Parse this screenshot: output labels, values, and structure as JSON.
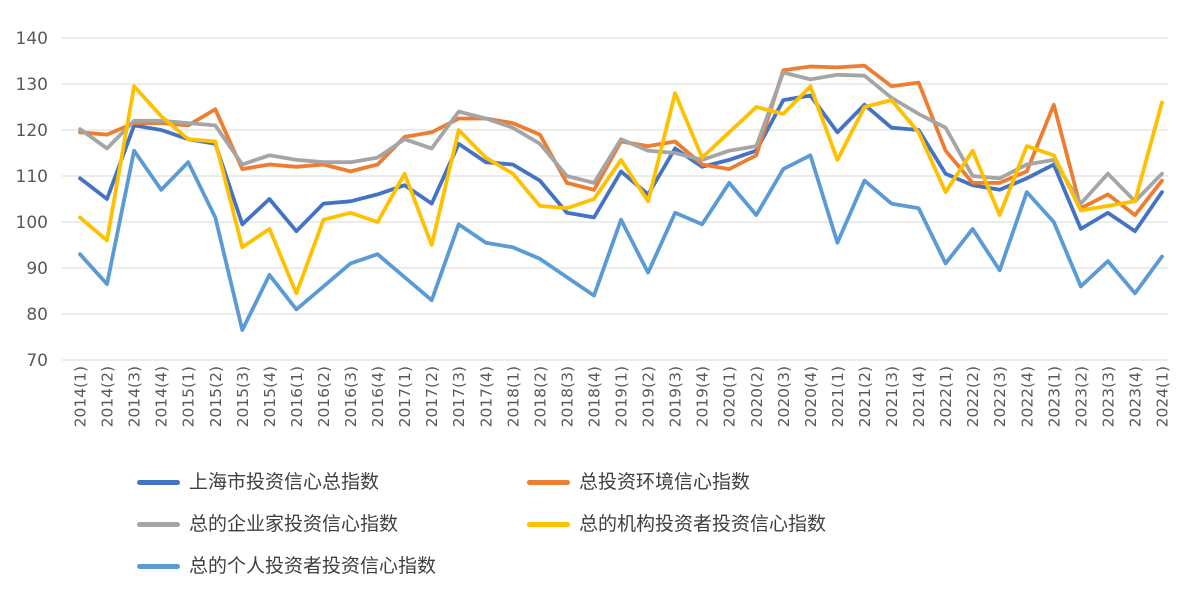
{
  "chart_data": {
    "type": "line",
    "title": "",
    "xlabel": "",
    "ylabel": "",
    "y_axis": {
      "min": 70,
      "max": 140,
      "step": 10,
      "tick_labels": [
        "70",
        "80",
        "90",
        "100",
        "110",
        "120",
        "130",
        "140"
      ]
    },
    "grid": true,
    "legend_position": "bottom",
    "gridline_color": "#d9d9d9",
    "axis_text_color": "#595959",
    "x_labels": [
      "2014(1)",
      "2014(2)",
      "2014(3)",
      "2014(4)",
      "2015(1)",
      "2015(2)",
      "2015(3)",
      "2015(4)",
      "2016(1)",
      "2016(2)",
      "2016(3)",
      "2016(4)",
      "2017(1)",
      "2017(2)",
      "2017(3)",
      "2017(4)",
      "2018(1)",
      "2018(2)",
      "2018(3)",
      "2018(4)",
      "2019(1)",
      "2019(2)",
      "2019(3)",
      "2019(4)",
      "2020(1)",
      "2020(2)",
      "2020(3)",
      "2020(4)",
      "2021(1)",
      "2021(2)",
      "2021(3)",
      "2021(4)",
      "2022(1)",
      "2022(2)",
      "2022(3)",
      "2022(4)",
      "2023(1)",
      "2023(2)",
      "2023(3)",
      "2023(4)",
      "2024(1)"
    ],
    "series": [
      {
        "name": "上海市投资信心总指数",
        "color": "#4472C4",
        "values": [
          109.5,
          105,
          121,
          120,
          118,
          117,
          99.5,
          105,
          98,
          104,
          104.5,
          106,
          108,
          104,
          117,
          113,
          112.5,
          109,
          102,
          101,
          111,
          106,
          116,
          112,
          113.5,
          115.5,
          126.5,
          127.5,
          119.5,
          125.5,
          120.5,
          120,
          110.5,
          108,
          107,
          109.5,
          112.5,
          98.5,
          102,
          98,
          106.5
        ]
      },
      {
        "name": "总投资环境信心指数",
        "color": "#ED7D31",
        "values": [
          119.5,
          119,
          121.5,
          121.5,
          121,
          124.5,
          111.5,
          112.5,
          112,
          112.5,
          111,
          112.5,
          118.5,
          119.5,
          122.5,
          122.5,
          121.5,
          119,
          108.5,
          107,
          117.5,
          116.5,
          117.5,
          112.5,
          111.5,
          114.5,
          133,
          133.8,
          133.6,
          134,
          129.5,
          130.3,
          115.5,
          108.5,
          108.5,
          111,
          125.5,
          103,
          106,
          101.5,
          109
        ]
      },
      {
        "name": "总的企业家投资信心指数",
        "color": "#A5A5A5",
        "values": [
          120.2,
          116,
          122,
          122,
          121.5,
          121,
          112.5,
          114.5,
          113.5,
          113,
          113,
          114,
          118,
          116,
          124,
          122.5,
          120.5,
          117,
          110,
          108.5,
          118,
          115.5,
          115,
          113.5,
          115.5,
          116.5,
          132.5,
          131,
          132,
          131.8,
          127,
          123.5,
          120.5,
          110,
          109.5,
          112.5,
          113.5,
          104,
          110.5,
          104.5,
          110.5
        ]
      },
      {
        "name": "总的机构投资者投资信心指数",
        "color": "#FFC000",
        "values": [
          101,
          96,
          129.5,
          123,
          118,
          117.5,
          94.5,
          98.5,
          84.5,
          100.5,
          102,
          100,
          110.5,
          95,
          120,
          114,
          110.5,
          103.5,
          103,
          105,
          113.5,
          104.5,
          128,
          114,
          119.5,
          125,
          123.5,
          129.5,
          113.5,
          125,
          126.5,
          119.5,
          106.5,
          115.5,
          101.5,
          116.5,
          114.5,
          102.5,
          103.5,
          104.5,
          126
        ]
      },
      {
        "name": "总的个人投资者投资信心指数",
        "color": "#5B9BD5",
        "values": [
          93,
          86.5,
          115.5,
          107,
          113,
          101,
          76.5,
          88.5,
          81,
          86,
          91,
          93,
          88,
          83,
          99.5,
          95.5,
          94.5,
          92,
          88,
          84,
          100.5,
          89,
          102,
          99.5,
          108.5,
          101.5,
          111.5,
          114.5,
          95.5,
          109,
          104,
          103,
          91,
          98.5,
          89.5,
          106.5,
          100,
          86,
          91.5,
          84.5,
          92.5
        ]
      }
    ]
  }
}
